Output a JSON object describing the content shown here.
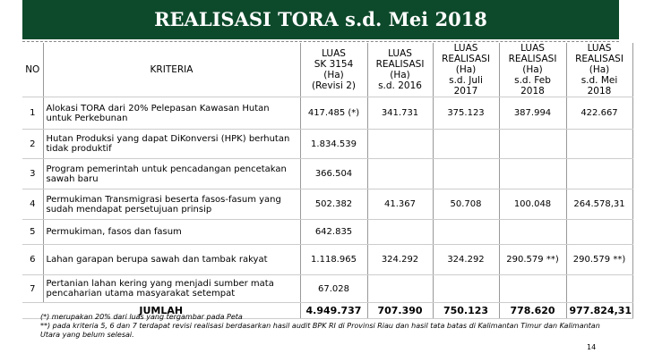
{
  "header": {
    "title": "REALISASI TORA s.d. Mei 2018"
  },
  "table": {
    "columns": [
      [
        "NO"
      ],
      [
        "KRITERIA"
      ],
      [
        "LUAS",
        "SK 3154",
        "(Ha)",
        "(Revisi 2)"
      ],
      [
        "LUAS",
        "REALISASI",
        "(Ha)",
        "s.d. 2016"
      ],
      [
        "LUAS",
        "REALISASI",
        "(Ha)",
        "s.d. Juli 2017"
      ],
      [
        "LUAS",
        "REALISASI",
        "(Ha)",
        "s.d. Feb 2018"
      ],
      [
        "LUAS",
        "REALISASI",
        "(Ha)",
        "s.d. Mei 2018"
      ]
    ],
    "rows": [
      [
        "1",
        "Alokasi TORA dari 20% Pelepasan Kawasan Hutan untuk Perkebunan",
        "417.485 (*)",
        "341.731",
        "375.123",
        "387.994",
        "422.667"
      ],
      [
        "2",
        "Hutan Produksi yang dapat DiKonversi (HPK) berhutan tidak produktif",
        "1.834.539",
        null,
        null,
        null,
        null
      ],
      [
        "3",
        "Program pemerintah untuk pencadangan pencetakan sawah baru",
        "366.504",
        null,
        null,
        null,
        null
      ],
      [
        "4",
        "Permukiman Transmigrasi beserta fasos-fasum yang sudah mendapat persetujuan prinsip",
        "502.382",
        "41.367",
        "50.708",
        "100.048",
        "264.578,31"
      ],
      [
        "5",
        "Permukiman, fasos dan fasum",
        "642.835",
        null,
        null,
        null,
        null
      ],
      [
        "6",
        "Lahan garapan berupa sawah dan tambak rakyat",
        "1.118.965",
        "324.292",
        "324.292",
        "290.579 **)",
        "290.579 **)"
      ],
      [
        "7",
        "Pertanian lahan kering yang menjadi sumber mata pencaharian utama masyarakat setempat",
        "67.028",
        null,
        null,
        null,
        null
      ]
    ],
    "total": [
      "JUMLAH",
      "4.949.737",
      "707.390",
      "750.123",
      "778.620",
      "977.824,31"
    ]
  },
  "footnotes": [
    "(*) merupakan 20% dari luas yang tergambar pada Peta",
    "**) pada kriteria 5, 6 dan 7 terdapat revisi realisasi berdasarkan hasil audit BPK RI di Provinsi Riau dan hasil tata batas di Kalimantan Timur dan Kalimantan Utara yang belum selesai."
  ],
  "page_number": "14"
}
